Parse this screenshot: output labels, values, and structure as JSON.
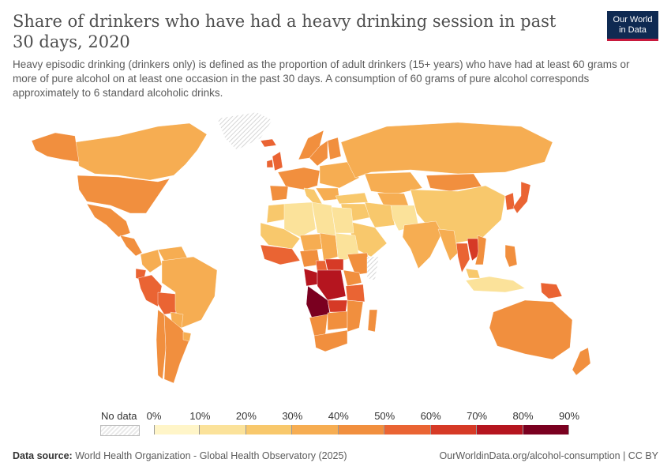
{
  "header": {
    "title": "Share of drinkers who have had a heavy drinking session in past 30 days, 2020",
    "subtitle": "Heavy episodic drinking (drinkers only) is defined as the proportion of adult drinkers (15+ years) who have had at least 60 grams or more of pure alcohol on at least one occasion in the past 30 days. A consumption of 60 grams of pure alcohol corresponds approximately to 6 standard alcoholic drinks.",
    "logo_line1": "Our World",
    "logo_line2": "in Data"
  },
  "legend": {
    "no_data_label": "No data",
    "ticks": [
      "0%",
      "10%",
      "20%",
      "30%",
      "40%",
      "50%",
      "60%",
      "70%",
      "80%",
      "90%"
    ],
    "bin_colors": [
      "#fff5c8",
      "#fbe29a",
      "#f8c86c",
      "#f6ad52",
      "#f18f3e",
      "#ea6433",
      "#d63a26",
      "#b5151f",
      "#7a0020"
    ],
    "no_data_color": "#eeeeee"
  },
  "footer": {
    "source_label": "Data source:",
    "source_text": "World Health Organization - Global Health Observatory (2025)",
    "right_text": "OurWorldinData.org/alcohol-consumption | CC BY"
  },
  "map_regions": [
    {
      "name": "Canada",
      "bin": 3
    },
    {
      "name": "Alaska",
      "bin": 4
    },
    {
      "name": "Greenland",
      "bin": -1
    },
    {
      "name": "United States",
      "bin": 4
    },
    {
      "name": "Mexico",
      "bin": 4
    },
    {
      "name": "Central America",
      "bin": 4
    },
    {
      "name": "Colombia",
      "bin": 3
    },
    {
      "name": "Venezuela",
      "bin": 3
    },
    {
      "name": "Ecuador",
      "bin": 5
    },
    {
      "name": "Peru",
      "bin": 5
    },
    {
      "name": "Bolivia",
      "bin": 5
    },
    {
      "name": "Brazil",
      "bin": 3
    },
    {
      "name": "Paraguay",
      "bin": 3
    },
    {
      "name": "Chile",
      "bin": 4
    },
    {
      "name": "Argentina",
      "bin": 4
    },
    {
      "name": "Uruguay",
      "bin": 3
    },
    {
      "name": "Iceland",
      "bin": 5
    },
    {
      "name": "United Kingdom",
      "bin": 5
    },
    {
      "name": "Ireland",
      "bin": 5
    },
    {
      "name": "Norway",
      "bin": 4
    },
    {
      "name": "Sweden",
      "bin": 4
    },
    {
      "name": "Finland",
      "bin": 4
    },
    {
      "name": "Western Europe",
      "bin": 4
    },
    {
      "name": "Spain and Portugal",
      "bin": 4
    },
    {
      "name": "Italy",
      "bin": 2
    },
    {
      "name": "Eastern Europe",
      "bin": 3
    },
    {
      "name": "Balkans",
      "bin": 3
    },
    {
      "name": "Russia",
      "bin": 3
    },
    {
      "name": "Turkey",
      "bin": 2
    },
    {
      "name": "Kazakhstan",
      "bin": 3
    },
    {
      "name": "Central Asia",
      "bin": 3
    },
    {
      "name": "Mongolia",
      "bin": 4
    },
    {
      "name": "China",
      "bin": 2
    },
    {
      "name": "Korea",
      "bin": 5
    },
    {
      "name": "Japan",
      "bin": 5
    },
    {
      "name": "Middle East",
      "bin": 2
    },
    {
      "name": "Iran",
      "bin": 2
    },
    {
      "name": "Arabian Peninsula",
      "bin": 2
    },
    {
      "name": "Pakistan and Afghanistan",
      "bin": 1
    },
    {
      "name": "India",
      "bin": 3
    },
    {
      "name": "Bangladesh and Myanmar",
      "bin": 3
    },
    {
      "name": "Thailand",
      "bin": 5
    },
    {
      "name": "Laos and Cambodia",
      "bin": 6
    },
    {
      "name": "Vietnam",
      "bin": 4
    },
    {
      "name": "Philippines",
      "bin": 4
    },
    {
      "name": "Malaysia",
      "bin": 2
    },
    {
      "name": "Indonesia",
      "bin": 1
    },
    {
      "name": "Papua New Guinea",
      "bin": 5
    },
    {
      "name": "Australia",
      "bin": 4
    },
    {
      "name": "New Zealand",
      "bin": 4
    },
    {
      "name": "Morocco",
      "bin": 2
    },
    {
      "name": "Algeria",
      "bin": 1
    },
    {
      "name": "Libya",
      "bin": 1
    },
    {
      "name": "Egypt",
      "bin": 1
    },
    {
      "name": "Mauritania and Mali",
      "bin": 2
    },
    {
      "name": "Niger",
      "bin": 3
    },
    {
      "name": "Chad",
      "bin": 3
    },
    {
      "name": "Sudan",
      "bin": 1
    },
    {
      "name": "West Africa",
      "bin": 5
    },
    {
      "name": "Nigeria",
      "bin": 4
    },
    {
      "name": "Cameroon",
      "bin": 5
    },
    {
      "name": "Central African Republic",
      "bin": 6
    },
    {
      "name": "Ethiopia",
      "bin": 4
    },
    {
      "name": "Somalia",
      "bin": -1
    },
    {
      "name": "Gabon and Congo",
      "bin": 7
    },
    {
      "name": "DR Congo",
      "bin": 7
    },
    {
      "name": "Angola",
      "bin": 8
    },
    {
      "name": "East Africa",
      "bin": 4
    },
    {
      "name": "Tanzania",
      "bin": 5
    },
    {
      "name": "Zambia",
      "bin": 6
    },
    {
      "name": "Namibia",
      "bin": 4
    },
    {
      "name": "Botswana and Zimbabwe",
      "bin": 4
    },
    {
      "name": "Mozambique",
      "bin": 4
    },
    {
      "name": "South Africa",
      "bin": 4
    },
    {
      "name": "Madagascar",
      "bin": 4
    }
  ]
}
